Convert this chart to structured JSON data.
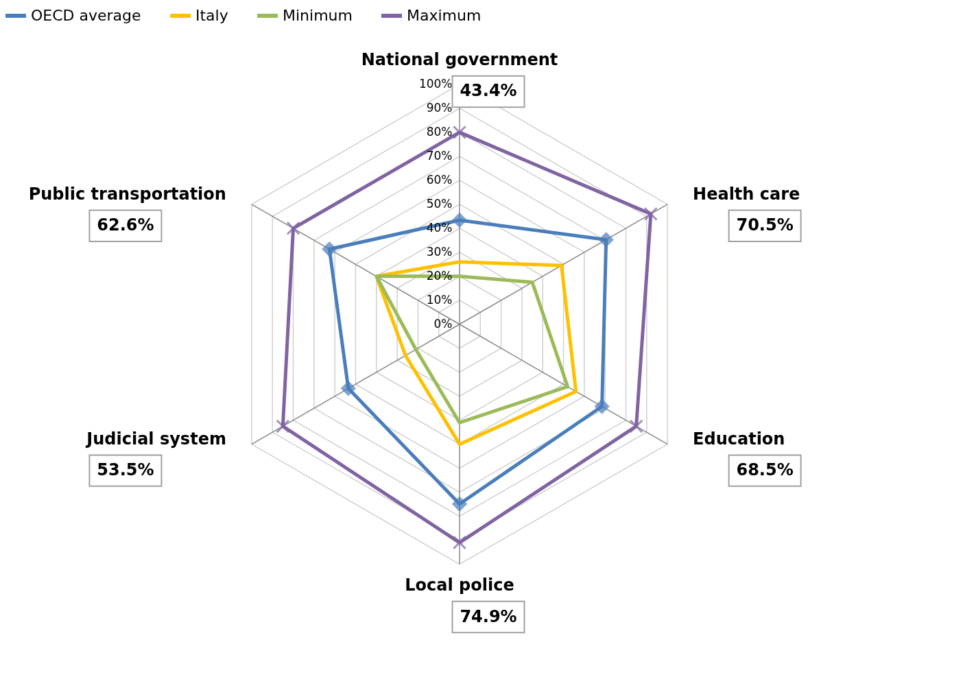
{
  "chart_data": {
    "type": "radar",
    "categories": [
      "National government",
      "Health care",
      "Education",
      "Local police",
      "Judicial system",
      "Public transportation"
    ],
    "ylim": [
      0,
      100
    ],
    "yticks": [
      {
        "value": 0,
        "label": "0%"
      },
      {
        "value": 10,
        "label": "10%"
      },
      {
        "value": 20,
        "label": "20%"
      },
      {
        "value": 30,
        "label": "30%"
      },
      {
        "value": 40,
        "label": "40%"
      },
      {
        "value": 50,
        "label": "50%"
      },
      {
        "value": 60,
        "label": "60%"
      },
      {
        "value": 70,
        "label": "70%"
      },
      {
        "value": 80,
        "label": "80%"
      },
      {
        "value": 90,
        "label": "90%"
      },
      {
        "value": 100,
        "label": "100%"
      }
    ],
    "grid": true,
    "legend": "top",
    "annotations": [
      "43.4%",
      "70.5%",
      "68.5%",
      "74.9%",
      "53.5%",
      "62.6%"
    ],
    "series": [
      {
        "name": "OECD average",
        "color": "#4a7ebb",
        "marker": "diamond",
        "values": [
          43.4,
          70.5,
          68.5,
          74.9,
          53.5,
          62.6
        ]
      },
      {
        "name": "Italy",
        "color": "#ffc000",
        "marker": "none",
        "values": [
          26,
          49,
          56,
          50,
          26,
          40
        ]
      },
      {
        "name": "Minimum",
        "color": "#9bbb59",
        "marker": "none",
        "values": [
          20,
          35,
          52,
          41,
          21,
          40
        ]
      },
      {
        "name": "Maximum",
        "color": "#8064a2",
        "marker": "cross",
        "values": [
          80,
          92,
          85,
          91,
          85,
          80
        ]
      }
    ]
  }
}
